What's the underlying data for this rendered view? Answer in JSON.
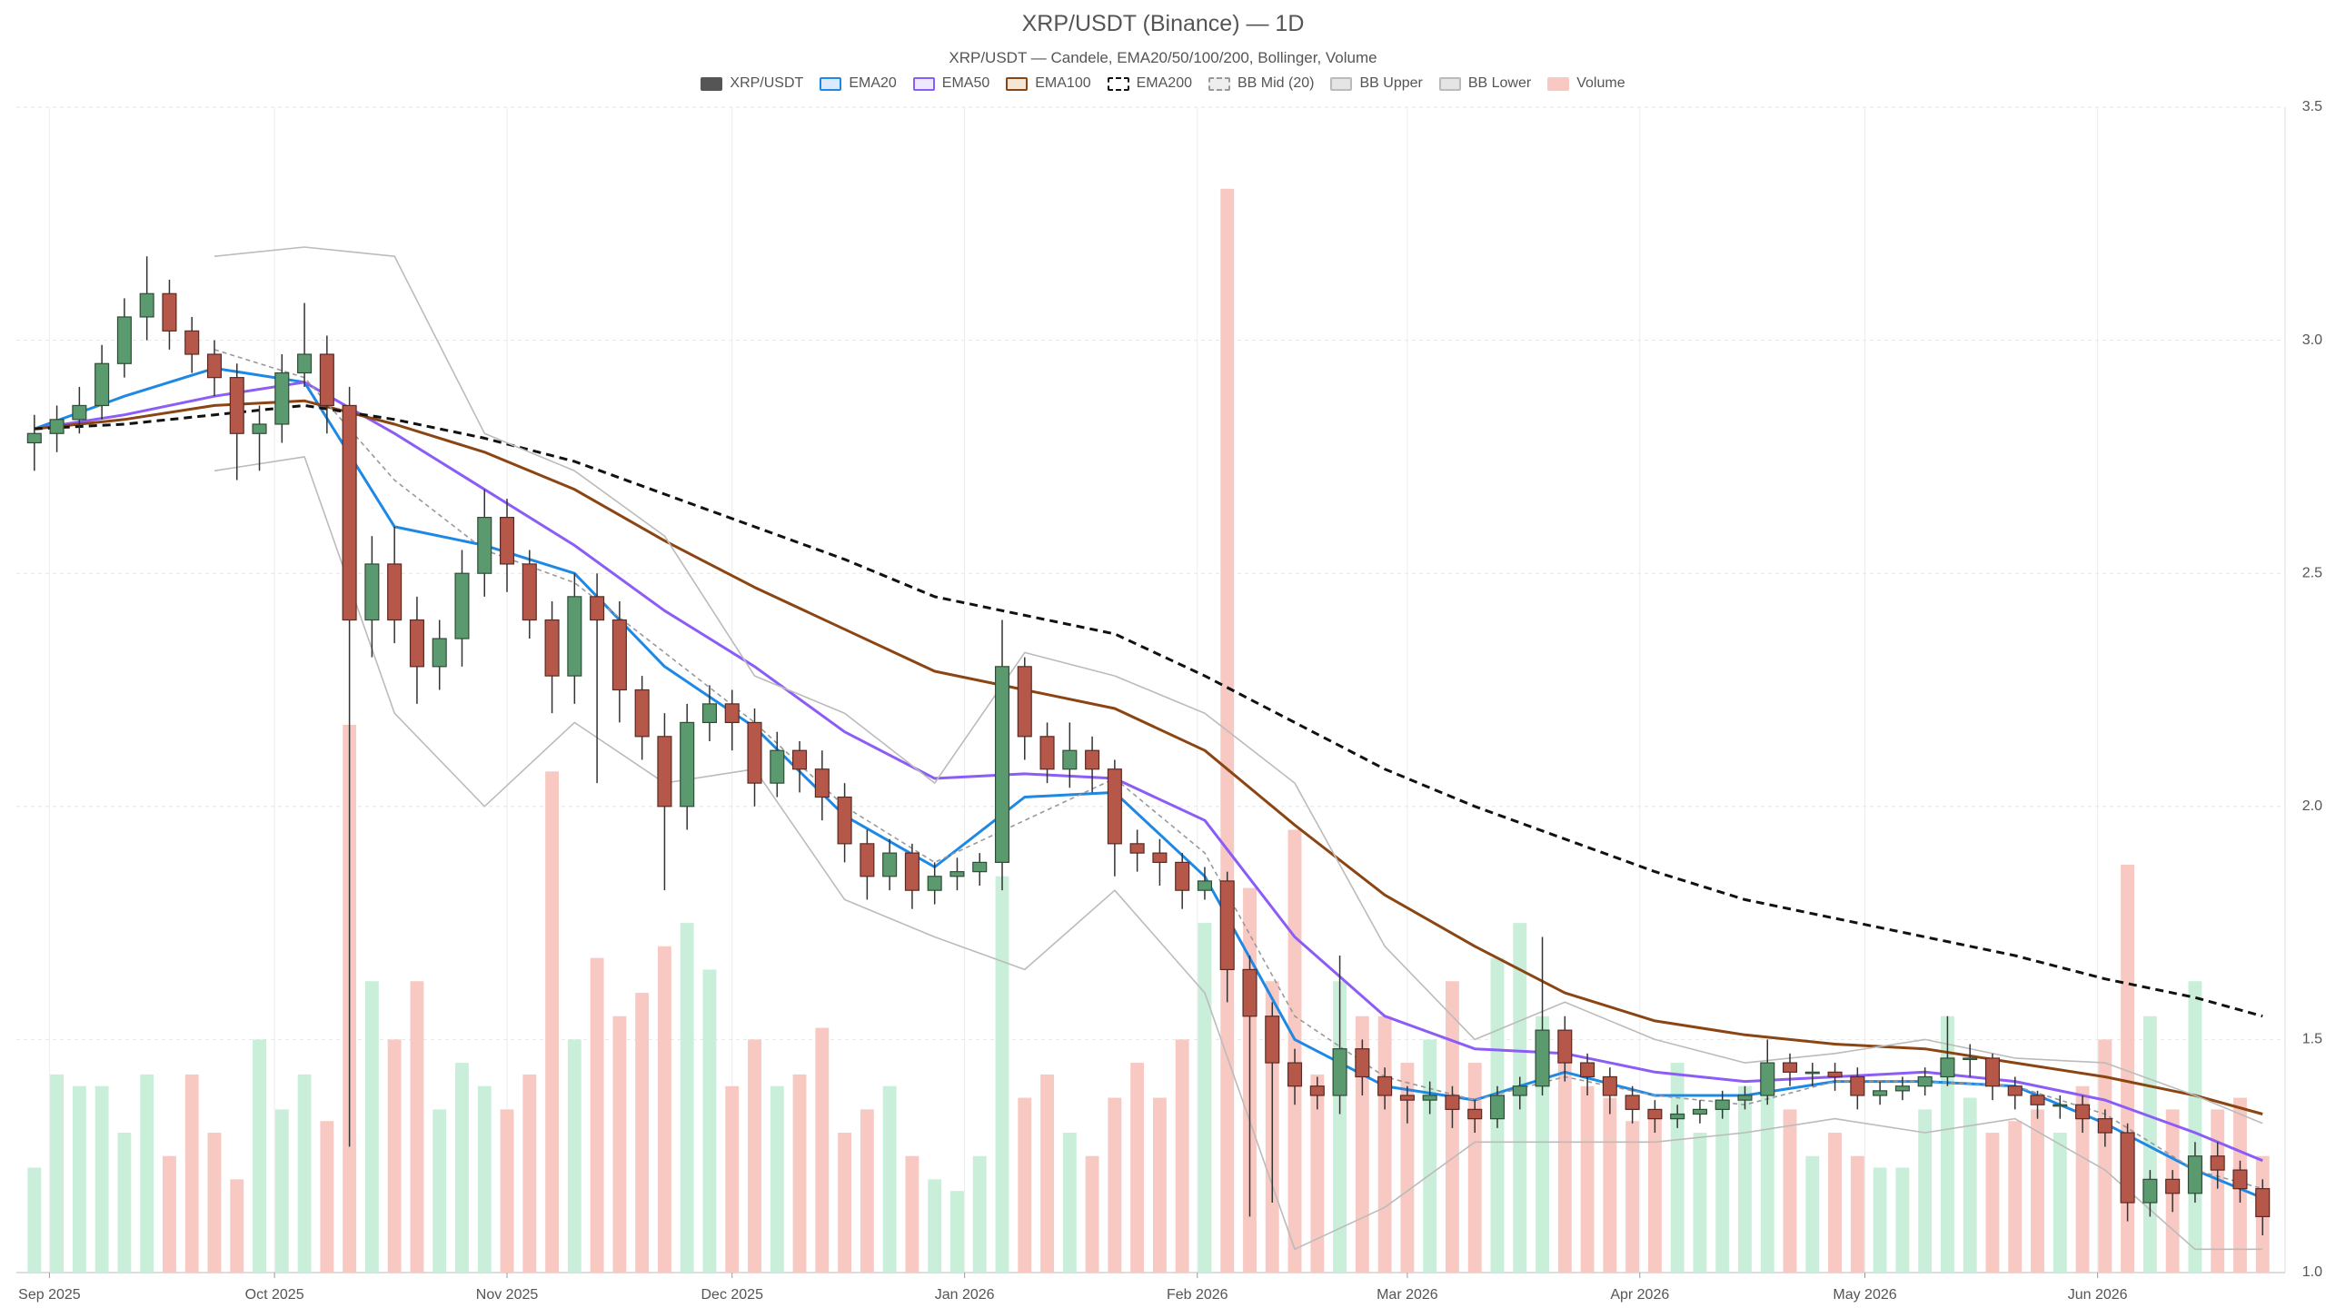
{
  "chart_data": {
    "type": "candlestick",
    "title": "XRP/USDT (Binance) — 1D",
    "subtitle": "XRP/USDT — Candele, EMA20/50/100/200, Bollinger, Volume",
    "xlim": [
      -0.8,
      100
    ],
    "xticks": [
      {
        "value": 0.67,
        "label": "Sep 2025"
      },
      {
        "value": 10.67,
        "label": "Oct 2025"
      },
      {
        "value": 21,
        "label": "Nov 2025"
      },
      {
        "value": 31,
        "label": "Dec 2025"
      },
      {
        "value": 41.33,
        "label": "Jan 2026"
      },
      {
        "value": 51.67,
        "label": "Feb 2026"
      },
      {
        "value": 61,
        "label": "Mar 2026"
      },
      {
        "value": 71.33,
        "label": "Apr 2026"
      },
      {
        "value": 81.33,
        "label": "May 2026"
      },
      {
        "value": 91.67,
        "label": "Jun 2026"
      }
    ],
    "ylim": [
      1.0,
      3.5
    ],
    "yticks": [
      {
        "value": 1.0,
        "label": "1.0"
      },
      1.5,
      {
        "value": 2.0,
        "label": "2.0"
      },
      2.5,
      {
        "value": 3.0,
        "label": "3.0"
      },
      3.5
    ],
    "grid": true,
    "volume_lim": [
      0,
      100
    ],
    "line_x": [
      0,
      4,
      8,
      12,
      16,
      20,
      24,
      28,
      32,
      36,
      40,
      44,
      48,
      52,
      56,
      60,
      64,
      68,
      72,
      76,
      80,
      84,
      88,
      92,
      96,
      99
    ],
    "series": [
      {
        "name": "XRP/USDT",
        "type": "candlestick",
        "color": "#555555",
        "fill": "#555555",
        "up_color": "#5b9a6e",
        "up_edge": "#2e4d37",
        "down_color": "#b5584a",
        "down_edge": "#5a2a22",
        "open": [
          2.78,
          2.8,
          2.83,
          2.86,
          2.95,
          3.05,
          3.1,
          3.02,
          2.97,
          2.92,
          2.8,
          2.82,
          2.93,
          2.97,
          2.86,
          2.4,
          2.52,
          2.4,
          2.3,
          2.36,
          2.5,
          2.62,
          2.52,
          2.4,
          2.28,
          2.45,
          2.4,
          2.25,
          2.15,
          2.0,
          2.18,
          2.22,
          2.18,
          2.05,
          2.12,
          2.08,
          2.02,
          1.92,
          1.85,
          1.9,
          1.82,
          1.85,
          1.86,
          1.88,
          2.3,
          2.15,
          2.08,
          2.12,
          2.08,
          1.92,
          1.9,
          1.88,
          1.82,
          1.84,
          1.65,
          1.55,
          1.45,
          1.4,
          1.38,
          1.48,
          1.42,
          1.38,
          1.37,
          1.38,
          1.35,
          1.33,
          1.38,
          1.4,
          1.52,
          1.45,
          1.42,
          1.38,
          1.35,
          1.33,
          1.34,
          1.35,
          1.37,
          1.38,
          1.45,
          1.43,
          1.43,
          1.42,
          1.38,
          1.39,
          1.4,
          1.42,
          1.46,
          1.46,
          1.4,
          1.38,
          1.36,
          1.36,
          1.33,
          1.3,
          1.15,
          1.2,
          1.17,
          1.25,
          1.22,
          1.18
        ],
        "high": [
          2.84,
          2.86,
          2.9,
          2.99,
          3.09,
          3.18,
          3.13,
          3.05,
          3.0,
          2.95,
          2.86,
          2.97,
          3.08,
          3.01,
          2.9,
          2.58,
          2.6,
          2.45,
          2.4,
          2.55,
          2.68,
          2.66,
          2.55,
          2.44,
          2.5,
          2.5,
          2.44,
          2.28,
          2.2,
          2.22,
          2.26,
          2.25,
          2.21,
          2.16,
          2.14,
          2.12,
          2.05,
          1.95,
          1.93,
          1.92,
          1.88,
          1.89,
          1.9,
          2.4,
          2.32,
          2.18,
          2.18,
          2.15,
          2.1,
          1.95,
          1.93,
          1.9,
          1.87,
          1.86,
          1.68,
          1.58,
          1.48,
          1.42,
          1.68,
          1.5,
          1.44,
          1.4,
          1.41,
          1.4,
          1.37,
          1.4,
          1.42,
          1.72,
          1.55,
          1.47,
          1.44,
          1.4,
          1.37,
          1.36,
          1.37,
          1.39,
          1.4,
          1.5,
          1.47,
          1.45,
          1.45,
          1.44,
          1.41,
          1.42,
          1.44,
          1.55,
          1.49,
          1.47,
          1.42,
          1.39,
          1.38,
          1.38,
          1.35,
          1.32,
          1.22,
          1.22,
          1.28,
          1.28,
          1.24,
          1.2
        ],
        "low": [
          2.72,
          2.76,
          2.8,
          2.83,
          2.92,
          3.0,
          2.98,
          2.93,
          2.88,
          2.7,
          2.72,
          2.78,
          2.9,
          2.8,
          1.27,
          2.32,
          2.35,
          2.22,
          2.25,
          2.3,
          2.45,
          2.46,
          2.36,
          2.2,
          2.22,
          2.05,
          2.18,
          2.1,
          1.82,
          1.95,
          2.14,
          2.12,
          2.0,
          2.02,
          2.03,
          1.97,
          1.88,
          1.8,
          1.82,
          1.78,
          1.79,
          1.82,
          1.83,
          1.82,
          2.1,
          2.05,
          2.04,
          2.03,
          1.85,
          1.86,
          1.83,
          1.78,
          1.8,
          1.58,
          1.12,
          1.15,
          1.36,
          1.35,
          1.34,
          1.38,
          1.35,
          1.32,
          1.34,
          1.31,
          1.3,
          1.31,
          1.35,
          1.38,
          1.41,
          1.38,
          1.34,
          1.32,
          1.3,
          1.31,
          1.32,
          1.33,
          1.35,
          1.36,
          1.4,
          1.4,
          1.39,
          1.35,
          1.36,
          1.37,
          1.38,
          1.4,
          1.42,
          1.37,
          1.35,
          1.33,
          1.33,
          1.3,
          1.27,
          1.11,
          1.12,
          1.13,
          1.15,
          1.18,
          1.15,
          1.08
        ],
        "close": [
          2.8,
          2.83,
          2.86,
          2.95,
          3.05,
          3.1,
          3.02,
          2.97,
          2.92,
          2.8,
          2.82,
          2.93,
          2.97,
          2.86,
          2.4,
          2.52,
          2.4,
          2.3,
          2.36,
          2.5,
          2.62,
          2.52,
          2.4,
          2.28,
          2.45,
          2.4,
          2.25,
          2.15,
          2.0,
          2.18,
          2.22,
          2.18,
          2.05,
          2.12,
          2.08,
          2.02,
          1.92,
          1.85,
          1.9,
          1.82,
          1.85,
          1.86,
          1.88,
          2.3,
          2.15,
          2.08,
          2.12,
          2.08,
          1.92,
          1.9,
          1.88,
          1.82,
          1.84,
          1.65,
          1.55,
          1.45,
          1.4,
          1.38,
          1.48,
          1.42,
          1.38,
          1.37,
          1.38,
          1.35,
          1.33,
          1.38,
          1.4,
          1.52,
          1.45,
          1.42,
          1.38,
          1.35,
          1.33,
          1.34,
          1.35,
          1.37,
          1.38,
          1.45,
          1.43,
          1.43,
          1.42,
          1.38,
          1.39,
          1.4,
          1.42,
          1.46,
          1.46,
          1.4,
          1.38,
          1.36,
          1.36,
          1.33,
          1.3,
          1.15,
          1.2,
          1.17,
          1.25,
          1.22,
          1.18,
          1.12
        ]
      },
      {
        "name": "EMA20",
        "type": "line",
        "color": "#1e88e5",
        "fill": "#dbeafe",
        "width": 3,
        "values": [
          2.81,
          2.88,
          2.94,
          2.91,
          2.6,
          2.56,
          2.5,
          2.3,
          2.17,
          1.98,
          1.87,
          2.02,
          2.03,
          1.85,
          1.5,
          1.4,
          1.37,
          1.43,
          1.38,
          1.38,
          1.41,
          1.41,
          1.4,
          1.32,
          1.22,
          1.16
        ]
      },
      {
        "name": "EMA50",
        "type": "line",
        "color": "#8b5cf6",
        "fill": "#ede9fe",
        "width": 3,
        "values": [
          2.81,
          2.84,
          2.88,
          2.91,
          2.8,
          2.68,
          2.56,
          2.42,
          2.3,
          2.16,
          2.06,
          2.07,
          2.06,
          1.97,
          1.72,
          1.55,
          1.48,
          1.47,
          1.43,
          1.41,
          1.42,
          1.43,
          1.41,
          1.37,
          1.3,
          1.24
        ]
      },
      {
        "name": "EMA100",
        "type": "line",
        "color": "#8b4513",
        "fill": "#f3e5d8",
        "width": 3,
        "values": [
          2.81,
          2.83,
          2.86,
          2.87,
          2.82,
          2.76,
          2.68,
          2.57,
          2.47,
          2.38,
          2.29,
          2.25,
          2.21,
          2.12,
          1.96,
          1.81,
          1.7,
          1.6,
          1.54,
          1.51,
          1.49,
          1.48,
          1.45,
          1.42,
          1.38,
          1.34
        ]
      },
      {
        "name": "EMA200",
        "type": "line",
        "color": "#111111",
        "fill": "#ffffff",
        "width": 3,
        "dash": true,
        "values": [
          2.81,
          2.82,
          2.84,
          2.86,
          2.83,
          2.79,
          2.74,
          2.67,
          2.6,
          2.53,
          2.45,
          2.41,
          2.37,
          2.28,
          2.18,
          2.08,
          2.0,
          1.93,
          1.86,
          1.8,
          1.76,
          1.72,
          1.68,
          1.63,
          1.59,
          1.55
        ]
      },
      {
        "name": "BB Mid (20)",
        "type": "line",
        "color": "#999999",
        "fill": "#eeeeee",
        "width": 1.6,
        "dash": true,
        "values": [
          null,
          null,
          2.98,
          2.92,
          2.7,
          2.55,
          2.48,
          2.33,
          2.18,
          2.0,
          1.88,
          1.97,
          2.06,
          1.9,
          1.55,
          1.42,
          1.37,
          1.42,
          1.38,
          1.36,
          1.41,
          1.41,
          1.4,
          1.34,
          1.22,
          1.18
        ]
      },
      {
        "name": "BB Upper",
        "type": "line",
        "color": "#bbbbbb",
        "fill": "#e5e5e5",
        "width": 1.6,
        "values": [
          null,
          null,
          3.18,
          3.2,
          3.18,
          2.8,
          2.72,
          2.58,
          2.28,
          2.2,
          2.05,
          2.33,
          2.28,
          2.2,
          2.05,
          1.7,
          1.5,
          1.58,
          1.5,
          1.45,
          1.47,
          1.5,
          1.46,
          1.45,
          1.38,
          1.32
        ]
      },
      {
        "name": "BB Lower",
        "type": "line",
        "color": "#bbbbbb",
        "fill": "#e5e5e5",
        "width": 1.6,
        "values": [
          null,
          null,
          2.72,
          2.75,
          2.2,
          2.0,
          2.18,
          2.05,
          2.08,
          1.8,
          1.72,
          1.65,
          1.82,
          1.6,
          1.05,
          1.14,
          1.28,
          1.28,
          1.28,
          1.3,
          1.33,
          1.3,
          1.33,
          1.22,
          1.05,
          1.05
        ]
      },
      {
        "name": "Volume",
        "type": "volume",
        "color": "#f8c8c2",
        "fill": "#f8c8c2",
        "up_color": "#c9eed9",
        "down_color": "#f8c8c2",
        "values": [
          9,
          17,
          16,
          16,
          12,
          17,
          10,
          17,
          12,
          8,
          20,
          14,
          17,
          13,
          47,
          25,
          20,
          25,
          14,
          18,
          16,
          14,
          17,
          43,
          20,
          27,
          22,
          24,
          28,
          30,
          26,
          16,
          20,
          16,
          17,
          21,
          12,
          14,
          16,
          10,
          8,
          7,
          10,
          34,
          15,
          17,
          12,
          10,
          15,
          18,
          15,
          20,
          30,
          93,
          33,
          25,
          38,
          17,
          25,
          22,
          22,
          18,
          20,
          25,
          18,
          27,
          30,
          22,
          20,
          16,
          15,
          13,
          14,
          18,
          12,
          14,
          16,
          17,
          14,
          10,
          12,
          10,
          9,
          9,
          14,
          22,
          15,
          12,
          13,
          14,
          12,
          16,
          20,
          35,
          22,
          14,
          25,
          14,
          15,
          10
        ]
      }
    ]
  }
}
